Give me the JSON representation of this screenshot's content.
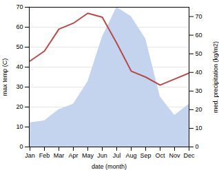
{
  "chart_data": {
    "type": "line",
    "xlabel": "date (month)",
    "ylabel": "max temp (C)",
    "y2label": "med. precipitation (kg/m2)",
    "categories": [
      "Jan",
      "Feb",
      "Mar",
      "Apr",
      "May",
      "Jun",
      "Jul",
      "Aug",
      "Sep",
      "Oct",
      "Nov",
      "Dec"
    ],
    "series": [
      {
        "type": "area",
        "axis": "y2",
        "color": "#c5d4ee",
        "values": [
          13,
          14,
          20,
          23,
          35,
          59,
          75,
          70,
          58,
          27,
          17,
          23
        ]
      },
      {
        "type": "line",
        "color": "#b54a4a",
        "values": [
          43,
          48,
          59,
          62,
          67,
          65,
          52,
          38,
          35,
          31,
          34,
          37
        ]
      }
    ],
    "ylim": [
      0,
      70
    ],
    "yticks": [
      0,
      10,
      20,
      30,
      40,
      50,
      60,
      70
    ],
    "y2lim": [
      0,
      75
    ],
    "y2ticks": [
      0,
      10,
      20,
      30,
      40,
      50,
      60,
      70
    ],
    "grid": true
  }
}
